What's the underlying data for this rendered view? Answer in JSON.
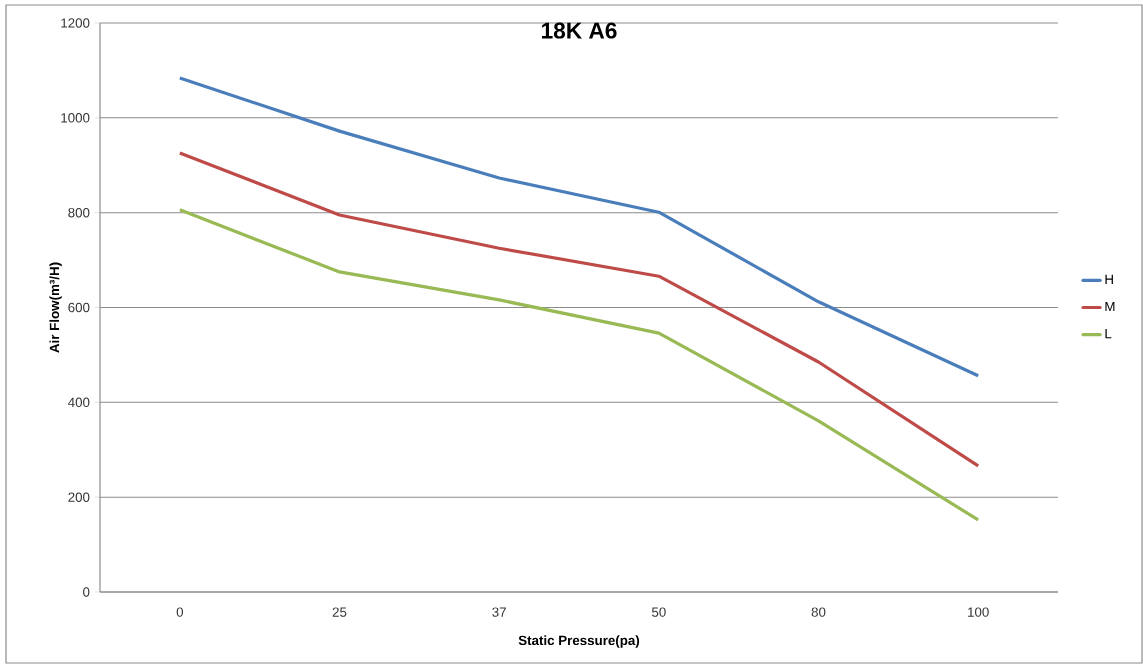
{
  "chart_data": {
    "type": "line",
    "title": "18K A6",
    "xlabel": "Static Pressure(pa)",
    "ylabel": "Air Flow(m³/H)",
    "categories": [
      "0",
      "25",
      "37",
      "50",
      "80",
      "100"
    ],
    "series": [
      {
        "name": "H",
        "color": "#4a7ebb",
        "values": [
          1084,
          972,
          873,
          801,
          612,
          456
        ]
      },
      {
        "name": "M",
        "color": "#be4b48",
        "values": [
          926,
          795,
          725,
          666,
          485,
          266
        ]
      },
      {
        "name": "L",
        "color": "#98b954",
        "values": [
          806,
          675,
          616,
          546,
          361,
          152
        ]
      }
    ],
    "ylim": [
      0,
      1200
    ],
    "yticks": [
      0,
      200,
      400,
      600,
      800,
      1000,
      1200
    ],
    "grid": "y",
    "legend": "right",
    "marker": "none",
    "line_style": "solid"
  }
}
